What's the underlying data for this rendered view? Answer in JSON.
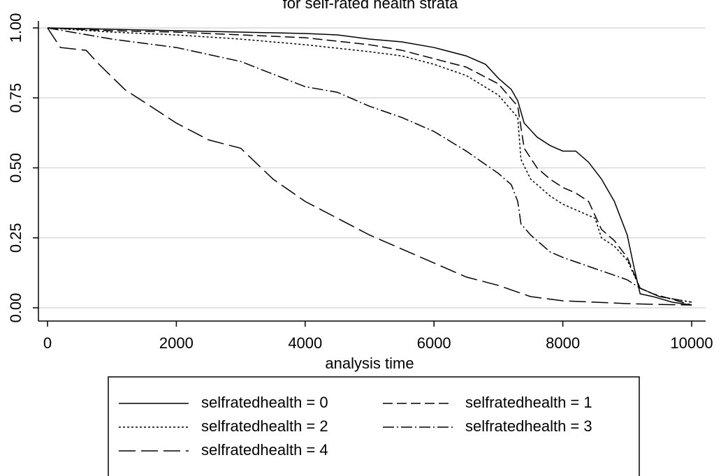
{
  "chart_data": {
    "type": "line",
    "title": "for self-rated health strata",
    "xlabel": "analysis time",
    "xlim": [
      0,
      10000
    ],
    "xticks": [
      0,
      2000,
      4000,
      6000,
      8000,
      10000
    ],
    "ylim": [
      0,
      1
    ],
    "yticks": [
      {
        "value": 0,
        "label": "0.00"
      },
      {
        "value": 0.25,
        "label": "0.25"
      },
      {
        "value": 0.5,
        "label": "0.50"
      },
      {
        "value": 0.75,
        "label": "0.75"
      },
      {
        "value": 1,
        "label": "1.00"
      }
    ],
    "grid": true,
    "series": [
      {
        "name": "selfratedhealth = 0",
        "color": "#000000",
        "dash": "none",
        "x": [
          0,
          1000,
          2000,
          3000,
          4000,
          4500,
          5000,
          5500,
          6000,
          6500,
          6800,
          7000,
          7200,
          7300,
          7400,
          7600,
          7800,
          8000,
          8200,
          8400,
          8600,
          8800,
          9000,
          9100,
          9200,
          9400,
          9700,
          10000
        ],
        "values": [
          1.0,
          0.995,
          0.99,
          0.985,
          0.98,
          0.975,
          0.96,
          0.95,
          0.93,
          0.9,
          0.87,
          0.82,
          0.78,
          0.74,
          0.66,
          0.61,
          0.58,
          0.56,
          0.56,
          0.52,
          0.46,
          0.38,
          0.26,
          0.15,
          0.05,
          0.04,
          0.02,
          0.01
        ]
      },
      {
        "name": "selfratedhealth = 1",
        "color": "#000000",
        "dash": "14,6",
        "x": [
          0,
          1000,
          2000,
          3000,
          4000,
          5000,
          5500,
          6000,
          6500,
          7000,
          7300,
          7400,
          7600,
          7800,
          8000,
          8200,
          8400,
          8500,
          8600,
          8800,
          9000,
          9200,
          9400,
          9700,
          10000
        ],
        "values": [
          1.0,
          0.99,
          0.985,
          0.975,
          0.965,
          0.94,
          0.92,
          0.89,
          0.86,
          0.8,
          0.72,
          0.57,
          0.5,
          0.46,
          0.43,
          0.41,
          0.38,
          0.33,
          0.28,
          0.24,
          0.18,
          0.07,
          0.05,
          0.03,
          0.01
        ]
      },
      {
        "name": "selfratedhealth = 2",
        "color": "#000000",
        "dash": "3,3",
        "x": [
          0,
          1000,
          2000,
          3000,
          4000,
          5000,
          5500,
          6000,
          6500,
          7000,
          7300,
          7350,
          7500,
          7800,
          8000,
          8300,
          8500,
          8600,
          8800,
          9000,
          9200,
          9500,
          10000
        ],
        "values": [
          1.0,
          0.985,
          0.975,
          0.96,
          0.94,
          0.915,
          0.9,
          0.87,
          0.83,
          0.76,
          0.68,
          0.53,
          0.46,
          0.4,
          0.37,
          0.34,
          0.32,
          0.25,
          0.22,
          0.17,
          0.07,
          0.04,
          0.02
        ]
      },
      {
        "name": "selfratedhealth = 3",
        "color": "#000000",
        "dash": "16,4,2,4",
        "x": [
          0,
          500,
          1000,
          2000,
          3000,
          4000,
          4500,
          5000,
          5500,
          6000,
          6500,
          7000,
          7200,
          7300,
          7350,
          7500,
          7800,
          8000,
          8500,
          9000,
          9200,
          9500,
          10000
        ],
        "values": [
          1.0,
          0.98,
          0.96,
          0.93,
          0.88,
          0.79,
          0.77,
          0.72,
          0.68,
          0.63,
          0.56,
          0.48,
          0.44,
          0.38,
          0.3,
          0.26,
          0.2,
          0.18,
          0.14,
          0.1,
          0.07,
          0.04,
          0.02
        ]
      },
      {
        "name": "selfratedhealth = 4",
        "color": "#000000",
        "dash": "24,8",
        "x": [
          0,
          200,
          600,
          800,
          1200,
          1600,
          2000,
          2500,
          3000,
          3500,
          4000,
          4500,
          5000,
          5500,
          6000,
          6500,
          7000,
          7500,
          8000,
          8500,
          9000,
          9500,
          10000
        ],
        "values": [
          1.0,
          0.93,
          0.92,
          0.87,
          0.78,
          0.72,
          0.66,
          0.6,
          0.57,
          0.46,
          0.38,
          0.32,
          0.26,
          0.21,
          0.16,
          0.11,
          0.08,
          0.04,
          0.025,
          0.02,
          0.015,
          0.012,
          0.01
        ]
      }
    ]
  }
}
